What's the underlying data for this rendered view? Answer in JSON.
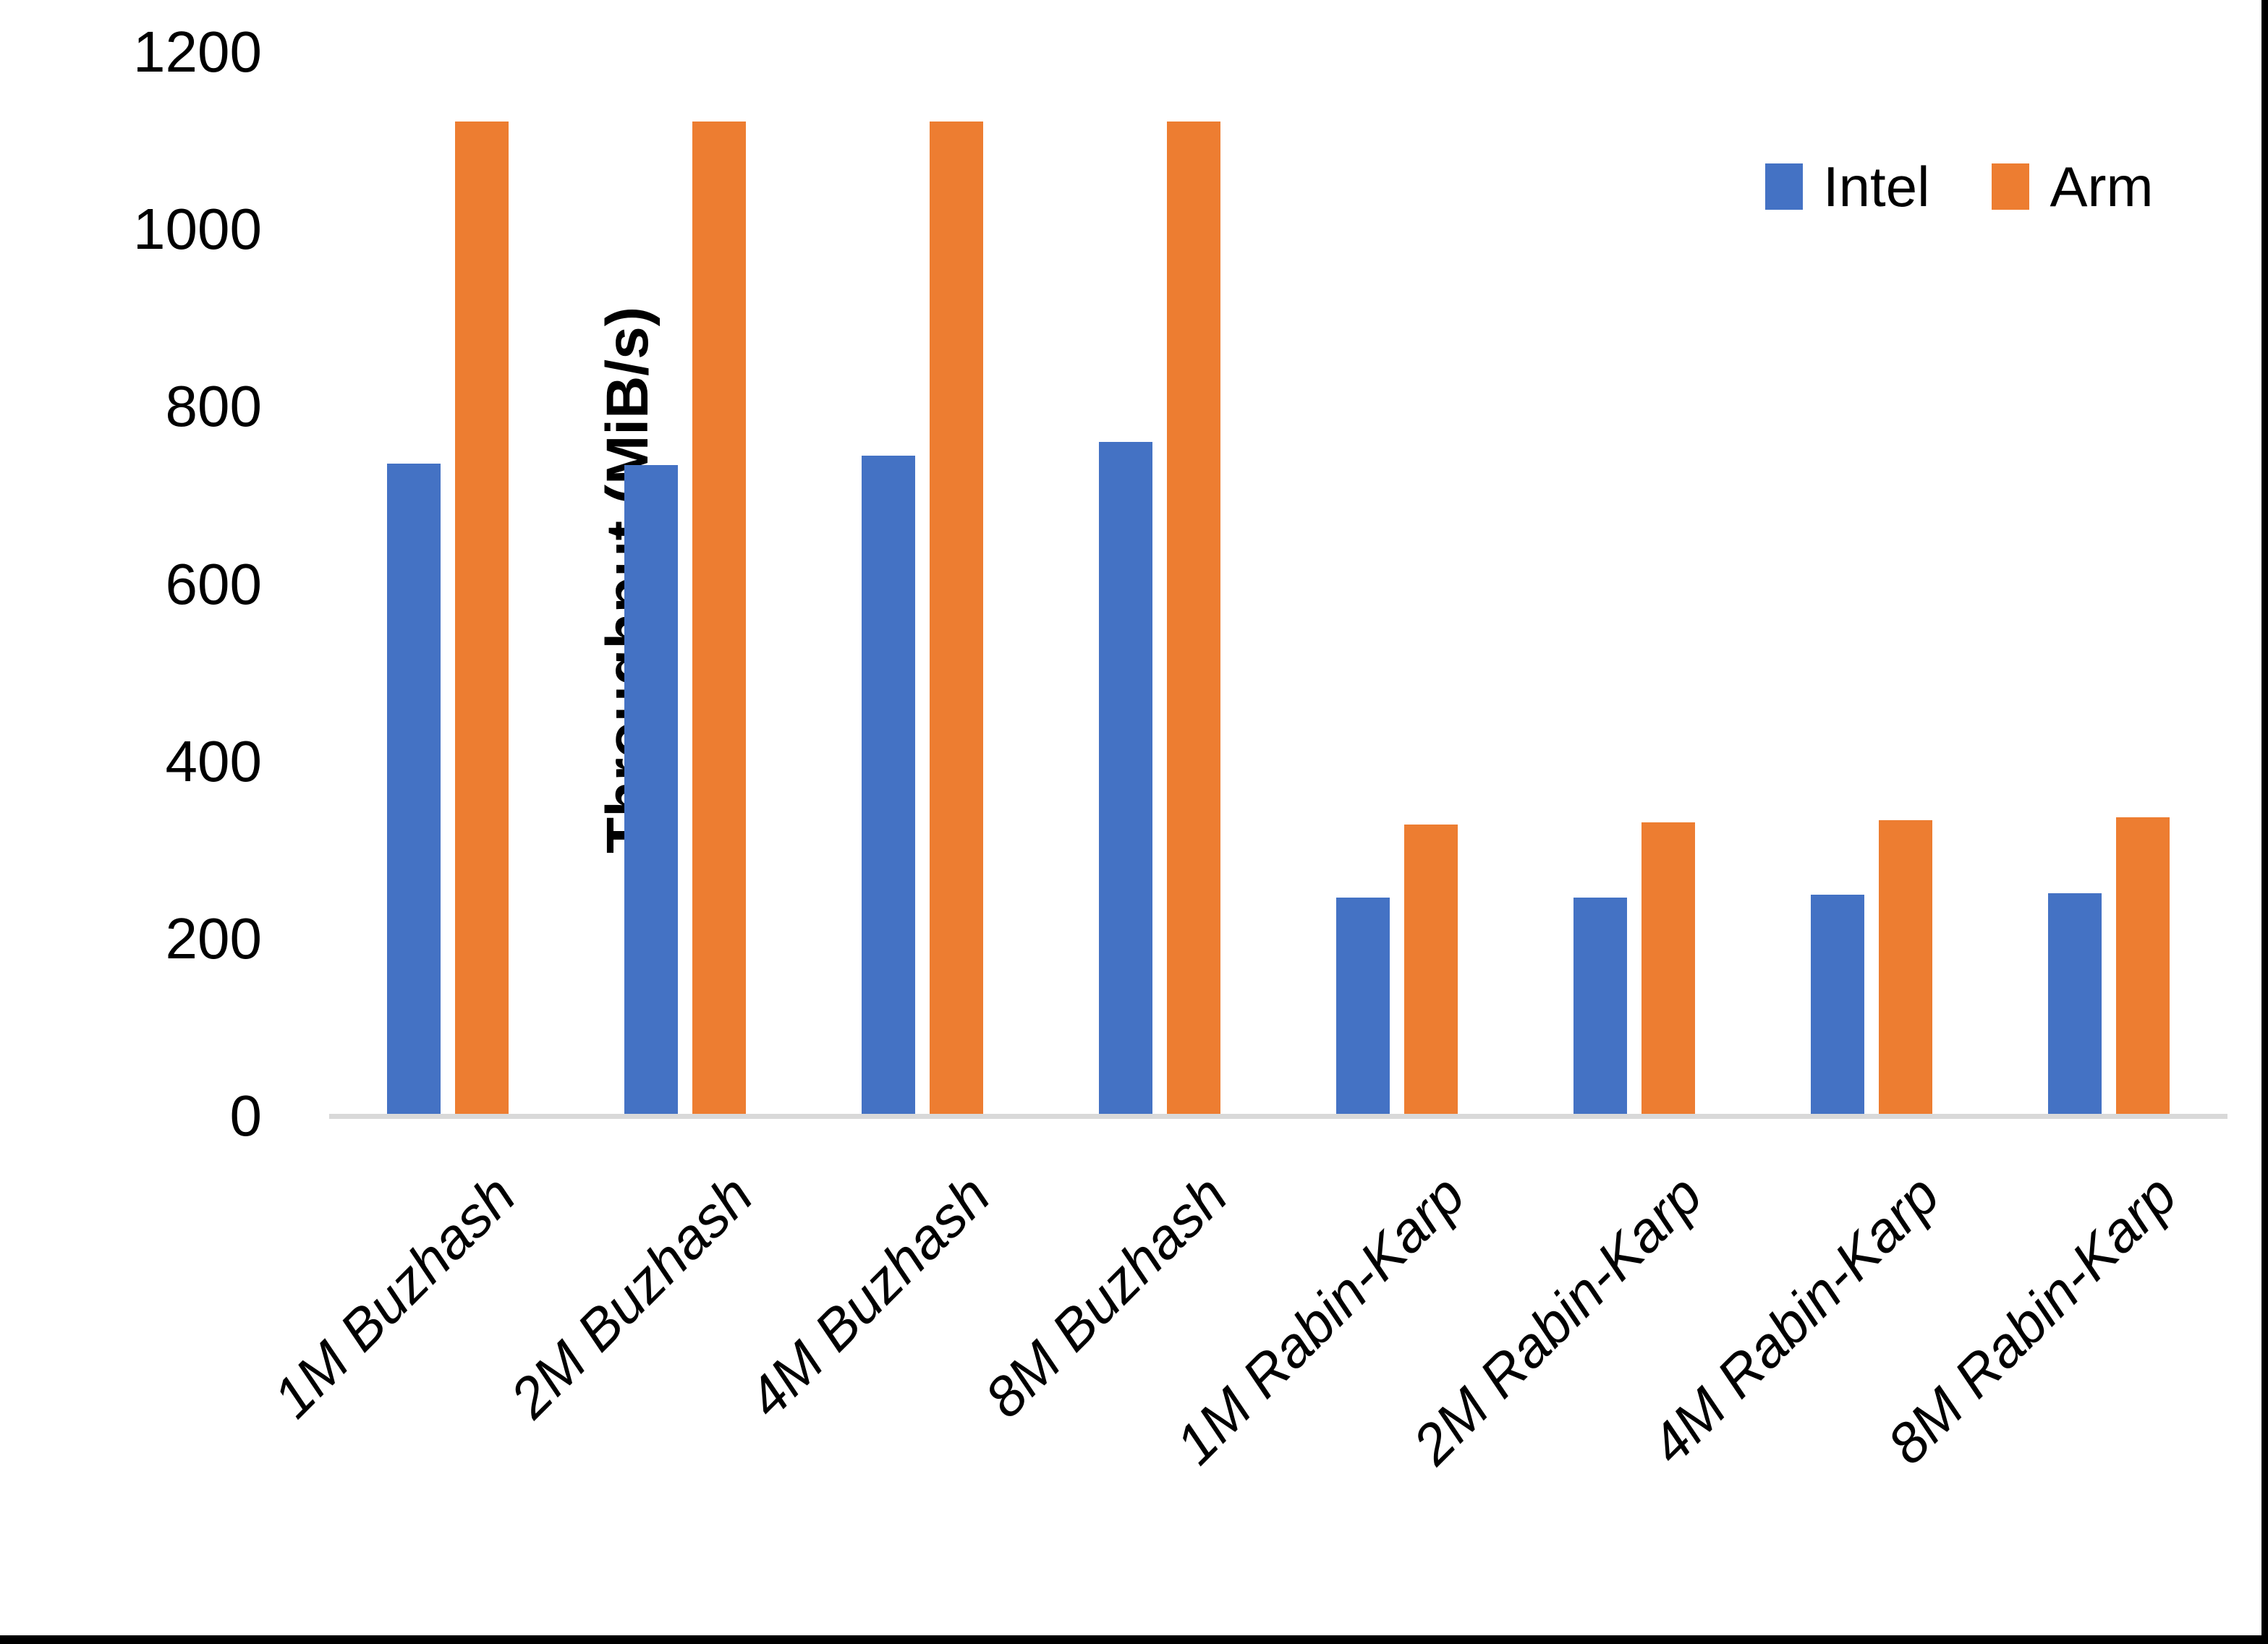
{
  "chart_data": {
    "type": "bar",
    "title": "",
    "xlabel": "",
    "ylabel": "Throughput (MiB/s)",
    "ylim": [
      0,
      1200
    ],
    "yticks": [
      0,
      200,
      400,
      600,
      800,
      1000,
      1200
    ],
    "grid": false,
    "legend_position": "top-right",
    "axis_line_color": "#D9D9D9",
    "categories": [
      "1M Buzhash",
      "2M Buzhash",
      "4M Buzhash",
      "8M Buzhash",
      "1M Rabin-Karp",
      "2M Rabin-Karp",
      "4M Rabin-Karp",
      "8M Rabin-Karp"
    ],
    "series": [
      {
        "name": "Intel",
        "color": "#4472C4",
        "values": [
          736,
          734,
          745,
          760,
          246,
          246,
          250,
          251
        ]
      },
      {
        "name": "Arm",
        "color": "#ED7D31",
        "values": [
          1122,
          1122,
          1122,
          1122,
          329,
          331,
          334,
          337
        ]
      }
    ]
  }
}
